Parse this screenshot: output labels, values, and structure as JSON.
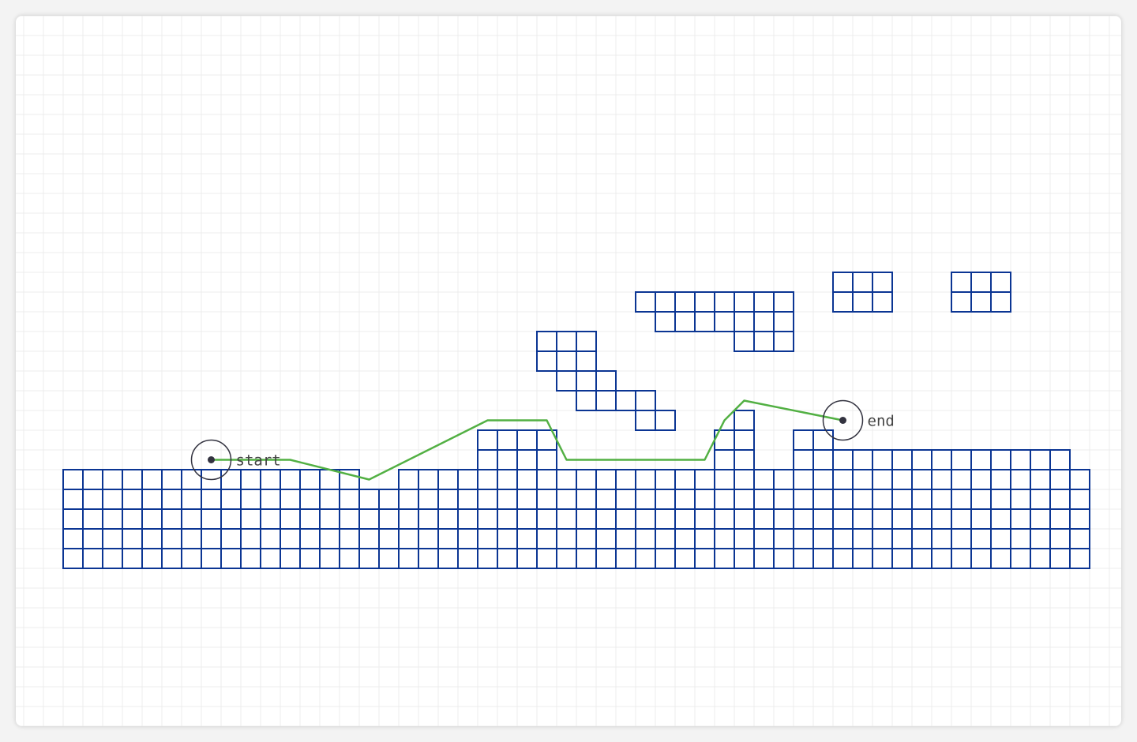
{
  "colors": {
    "background_grid": "#ececec",
    "tile_stroke": "#0b3593",
    "tile_fill": "#ffffff",
    "path": "#52b043",
    "marker": "#333340"
  },
  "markers": {
    "start": {
      "label": "start",
      "col": 7,
      "row": 21
    },
    "end": {
      "label": "end",
      "col": 39,
      "row": 19
    }
  },
  "path_cells": [
    [
      7,
      21
    ],
    [
      11,
      21
    ],
    [
      15,
      22
    ],
    [
      21,
      19
    ],
    [
      24,
      19
    ],
    [
      25,
      21
    ],
    [
      32,
      21
    ],
    [
      33,
      19
    ],
    [
      34,
      18
    ],
    [
      39,
      19
    ]
  ],
  "terrain_columns": [
    {
      "from": 0,
      "to": 14,
      "top": 22
    },
    {
      "from": 15,
      "to": 16,
      "top": 23
    },
    {
      "from": 17,
      "to": 20,
      "top": 22
    },
    {
      "from": 21,
      "to": 24,
      "top": 20
    },
    {
      "from": 25,
      "to": 32,
      "top": 22
    },
    {
      "from": 33,
      "to": 33,
      "top": 20
    },
    {
      "from": 34,
      "to": 34,
      "top": 19
    },
    {
      "from": 35,
      "to": 36,
      "top": 22
    },
    {
      "from": 37,
      "to": 38,
      "top": 20
    },
    {
      "from": 39,
      "to": 50,
      "top": 21
    },
    {
      "from": 51,
      "to": 51,
      "top": 22
    }
  ],
  "terrain_bottom_row": 26,
  "floating_blocks": [
    {
      "cells": [
        [
          24,
          15
        ],
        [
          25,
          15
        ],
        [
          26,
          15
        ],
        [
          24,
          16
        ],
        [
          25,
          16
        ],
        [
          26,
          16
        ],
        [
          25,
          17
        ],
        [
          26,
          17
        ],
        [
          27,
          17
        ],
        [
          26,
          18
        ],
        [
          27,
          18
        ],
        [
          28,
          18
        ],
        [
          29,
          18
        ],
        [
          29,
          19
        ],
        [
          30,
          19
        ]
      ]
    },
    {
      "cells": [
        [
          29,
          13
        ],
        [
          30,
          13
        ],
        [
          31,
          13
        ],
        [
          32,
          13
        ],
        [
          33,
          13
        ],
        [
          34,
          13
        ],
        [
          35,
          13
        ],
        [
          36,
          13
        ],
        [
          30,
          14
        ],
        [
          31,
          14
        ],
        [
          32,
          14
        ],
        [
          33,
          14
        ],
        [
          34,
          14
        ],
        [
          35,
          14
        ],
        [
          36,
          14
        ],
        [
          34,
          15
        ],
        [
          35,
          15
        ],
        [
          36,
          15
        ]
      ]
    },
    {
      "cells": [
        [
          39,
          12
        ],
        [
          40,
          12
        ],
        [
          41,
          12
        ],
        [
          39,
          13
        ],
        [
          40,
          13
        ],
        [
          41,
          13
        ]
      ]
    },
    {
      "cells": [
        [
          45,
          12
        ],
        [
          46,
          12
        ],
        [
          47,
          12
        ],
        [
          45,
          13
        ],
        [
          46,
          13
        ],
        [
          47,
          13
        ]
      ]
    }
  ]
}
